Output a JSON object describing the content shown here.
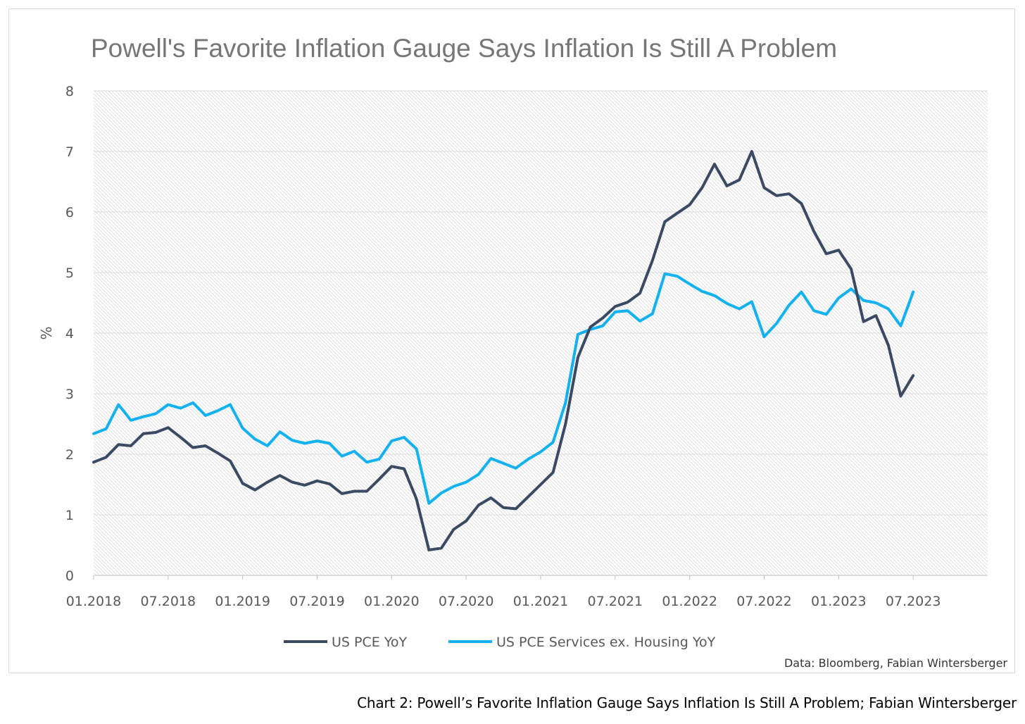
{
  "chart_data": {
    "type": "line",
    "title": "Powell's Favorite Inflation Gauge Says Inflation Is Still A Problem",
    "ylabel": "%",
    "xlabel": "",
    "ylim": [
      0,
      8
    ],
    "yticks": [
      "0",
      "1",
      "2",
      "3",
      "4",
      "5",
      "6",
      "7",
      "8"
    ],
    "xticks": [
      "01.2018",
      "07.2018",
      "01.2019",
      "07.2019",
      "01.2020",
      "07.2020",
      "01.2021",
      "07.2021",
      "01.2022",
      "07.2022",
      "01.2023",
      "07.2023"
    ],
    "grid": true,
    "legend": "bottom",
    "colors": {
      "US PCE YoY": "#3b4a63",
      "US PCE Services ex. Housing YoY": "#13b2ef"
    },
    "x": [
      "2018-01",
      "2018-02",
      "2018-03",
      "2018-04",
      "2018-05",
      "2018-06",
      "2018-07",
      "2018-08",
      "2018-09",
      "2018-10",
      "2018-11",
      "2018-12",
      "2019-01",
      "2019-02",
      "2019-03",
      "2019-04",
      "2019-05",
      "2019-06",
      "2019-07",
      "2019-08",
      "2019-09",
      "2019-10",
      "2019-11",
      "2019-12",
      "2020-01",
      "2020-02",
      "2020-03",
      "2020-04",
      "2020-05",
      "2020-06",
      "2020-07",
      "2020-08",
      "2020-09",
      "2020-10",
      "2020-11",
      "2020-12",
      "2021-01",
      "2021-02",
      "2021-03",
      "2021-04",
      "2021-05",
      "2021-06",
      "2021-07",
      "2021-08",
      "2021-09",
      "2021-10",
      "2021-11",
      "2021-12",
      "2022-01",
      "2022-02",
      "2022-03",
      "2022-04",
      "2022-05",
      "2022-06",
      "2022-07",
      "2022-08",
      "2022-09",
      "2022-10",
      "2022-11",
      "2022-12",
      "2023-01",
      "2023-02",
      "2023-03",
      "2023-04",
      "2023-05",
      "2023-06",
      "2023-07"
    ],
    "series": [
      {
        "name": "US PCE YoY",
        "values": [
          1.87,
          1.95,
          2.16,
          2.14,
          2.34,
          2.36,
          2.44,
          2.28,
          2.11,
          2.14,
          2.02,
          1.89,
          1.52,
          1.41,
          1.54,
          1.65,
          1.54,
          1.49,
          1.56,
          1.51,
          1.35,
          1.39,
          1.39,
          1.59,
          1.8,
          1.76,
          1.26,
          0.42,
          0.45,
          0.76,
          0.9,
          1.16,
          1.28,
          1.12,
          1.1,
          1.3,
          1.5,
          1.7,
          2.5,
          3.6,
          4.1,
          4.25,
          4.44,
          4.51,
          4.66,
          5.2,
          5.84,
          5.98,
          6.12,
          6.4,
          6.79,
          6.43,
          6.53,
          7.0,
          6.4,
          6.27,
          6.3,
          6.14,
          5.68,
          5.31,
          5.37,
          5.06,
          4.19,
          4.29,
          3.8,
          2.96,
          3.3
        ]
      },
      {
        "name": "US PCE Services ex. Housing YoY",
        "values": [
          2.34,
          2.42,
          2.82,
          2.56,
          2.62,
          2.67,
          2.82,
          2.76,
          2.85,
          2.64,
          2.72,
          2.82,
          2.43,
          2.25,
          2.14,
          2.37,
          2.23,
          2.18,
          2.22,
          2.18,
          1.97,
          2.05,
          1.87,
          1.92,
          2.22,
          2.28,
          2.09,
          1.19,
          1.36,
          1.47,
          1.54,
          1.67,
          1.93,
          1.85,
          1.77,
          1.92,
          2.04,
          2.2,
          2.85,
          3.98,
          4.06,
          4.12,
          4.35,
          4.37,
          4.2,
          4.32,
          4.98,
          4.94,
          4.81,
          4.69,
          4.62,
          4.49,
          4.4,
          4.52,
          3.94,
          4.16,
          4.46,
          4.68,
          4.37,
          4.31,
          4.58,
          4.73,
          4.54,
          4.5,
          4.4,
          4.12,
          4.68
        ]
      }
    ],
    "source": "Data: Bloomberg, Fabian Wintersberger"
  },
  "caption": "Chart 2: Powell’s Favorite Inflation Gauge Says Inflation Is Still A Problem; Fabian Wintersberger"
}
